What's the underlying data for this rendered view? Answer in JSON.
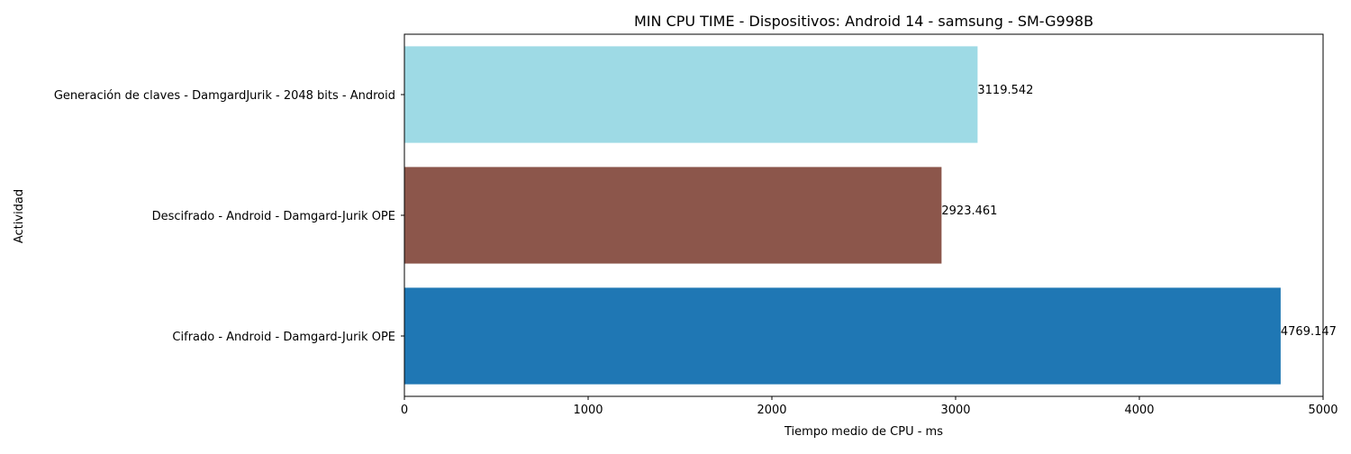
{
  "chart_data": {
    "type": "bar",
    "orientation": "horizontal",
    "title": "MIN CPU TIME - Dispositivos: Android 14 - samsung - SM-G998B",
    "xlabel": "Tiempo medio de CPU - ms",
    "ylabel": "Actividad",
    "xlim": [
      0,
      5000
    ],
    "xticks": [
      0,
      1000,
      2000,
      3000,
      4000,
      5000
    ],
    "grid": false,
    "categories": [
      "Cifrado - Android - Damgard-Jurik OPE",
      "Descifrado - Android - Damgard-Jurik OPE",
      "Generación de claves - DamgardJurik - 2048 bits - Android"
    ],
    "values": [
      4769.147,
      2923.461,
      3119.542
    ],
    "value_labels": [
      "4769.147",
      "2923.461",
      "3119.542"
    ],
    "colors": [
      "#1f77b4",
      "#8c564b",
      "#9edae5"
    ]
  }
}
